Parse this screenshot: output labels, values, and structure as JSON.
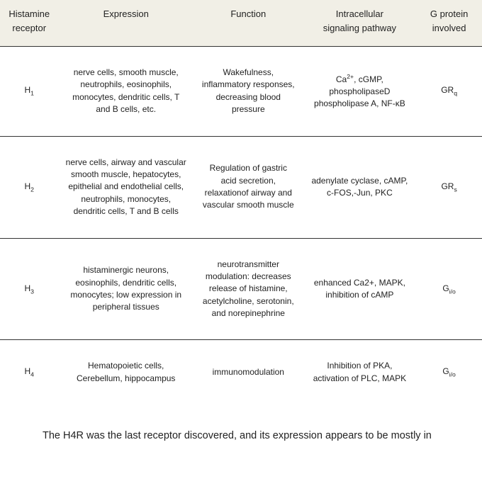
{
  "table": {
    "headers": {
      "receptor_l1": "Histamine",
      "receptor_l2": "receptor",
      "expression": "Expression",
      "function": "Function",
      "signaling_l1": "Intracellular",
      "signaling_l2": "signaling  pathway",
      "gprotein_l1": "G protein",
      "gprotein_l2": "involved"
    },
    "rows": [
      {
        "receptor_base": "H",
        "receptor_sub": "1",
        "expression": "nerve cells, smooth muscle, neutrophils, eosinophils, monocytes, dendritic cells, T and B cells, etc.",
        "function": "Wakefulness, inflammatory responses, decreasing blood pressure",
        "signaling_pre": "Ca",
        "signaling_sup": "2+",
        "signaling_post": ", cGMP, phospholipaseD phospholipase A, NF-κB",
        "gprotein_base": "GR",
        "gprotein_sub": "q"
      },
      {
        "receptor_base": "H",
        "receptor_sub": "2",
        "expression": "nerve cells, airway and vascular smooth muscle, hepatocytes, epithelial and endothelial cells, neutrophils, monocytes, dendritic cells, T and B cells",
        "function": "Regulation of gastric acid secretion, relaxationof airway and vascular smooth muscle",
        "signaling_plain": "adenylate cyclase, cAMP, c-FOS,-Jun, PKC",
        "gprotein_base": "GR",
        "gprotein_sub": "s"
      },
      {
        "receptor_base": "H",
        "receptor_sub": "3",
        "expression": "histaminergic neurons, eosinophils, dendritic cells, monocytes; low expression in peripheral tissues",
        "function": "neurotransmitter modulation: decreases release of histamine, acetylcholine, serotonin, and norepinephrine",
        "signaling_plain": "enhanced Ca2+, MAPK, inhibition of cAMP",
        "gprotein_base": "G",
        "gprotein_sub": "i/o"
      },
      {
        "receptor_base": "H",
        "receptor_sub": "4",
        "expression": "Hematopoietic cells, Cerebellum, hippocampus",
        "function": "immunomodulation",
        "signaling_plain": "Inhibition of PKA, activation of PLC, MAPK",
        "gprotein_base": "G",
        "gprotein_sub": "i/o"
      }
    ]
  },
  "paragraph": "The H4R was the last receptor discovered, and its expression appears to be mostly in"
}
